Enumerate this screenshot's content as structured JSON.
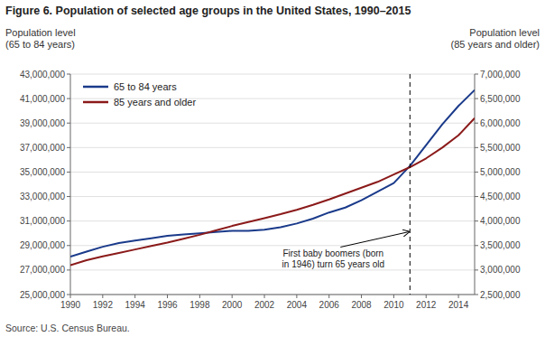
{
  "chart_data": {
    "type": "line",
    "title": "Figure 6. Population of selected age groups in the United States, 1990–2015",
    "ylabel": "Population level\n(65 to 84 years)",
    "y2label": "Population level\n(85 years and older)",
    "source": "Source: U.S. Census Bureau.",
    "x": [
      1990,
      1991,
      1992,
      1993,
      1994,
      1995,
      1996,
      1997,
      1998,
      1999,
      2000,
      2001,
      2002,
      2003,
      2004,
      2005,
      2006,
      2007,
      2008,
      2009,
      2010,
      2011,
      2012,
      2013,
      2014,
      2015
    ],
    "series": [
      {
        "name": "65 to 84 years",
        "color": "#1a3a8a",
        "values": [
          28100000,
          28500000,
          28900000,
          29200000,
          29400000,
          29600000,
          29800000,
          29900000,
          30000000,
          30100000,
          30200000,
          30200000,
          30300000,
          30500000,
          30800000,
          31200000,
          31700000,
          32100000,
          32700000,
          33400000,
          34100000,
          35500000,
          37200000,
          38900000,
          40400000,
          41700000
        ]
      },
      {
        "name": "85 years and older",
        "color": "#8b1a1a",
        "axis": "y2",
        "values": [
          3100000,
          3200000,
          3280000,
          3350000,
          3420000,
          3490000,
          3560000,
          3640000,
          3720000,
          3810000,
          3900000,
          3980000,
          4060000,
          4140000,
          4230000,
          4330000,
          4440000,
          4560000,
          4680000,
          4800000,
          4950000,
          5100000,
          5280000,
          5500000,
          5750000,
          6100000
        ]
      }
    ],
    "xlim": [
      1990,
      2015
    ],
    "xticks": [
      1990,
      1992,
      1994,
      1996,
      1998,
      2000,
      2002,
      2004,
      2006,
      2008,
      2010,
      2012,
      2014
    ],
    "ylim": [
      25000000,
      43000000
    ],
    "yticks": [
      {
        "value": 25000000,
        "label": "25,000,000"
      },
      {
        "value": 27000000,
        "label": "27,000,000"
      },
      {
        "value": 29000000,
        "label": "29,000,000"
      },
      {
        "value": 31000000,
        "label": "31,000,000"
      },
      {
        "value": 33000000,
        "label": "33,000,000"
      },
      {
        "value": 35000000,
        "label": "35,000,000"
      },
      {
        "value": 37000000,
        "label": "37,000,000"
      },
      {
        "value": 39000000,
        "label": "39,000,000"
      },
      {
        "value": 41000000,
        "label": "41,000,000"
      },
      {
        "value": 43000000,
        "label": "43,000,000"
      }
    ],
    "y2lim": [
      2500000,
      7000000
    ],
    "y2ticks": [
      {
        "value": 2500000,
        "label": "2,500,000"
      },
      {
        "value": 3000000,
        "label": "3,000,000"
      },
      {
        "value": 3500000,
        "label": "3,500,000"
      },
      {
        "value": 4000000,
        "label": "4,000,000"
      },
      {
        "value": 4500000,
        "label": "4,500,000"
      },
      {
        "value": 5000000,
        "label": "5,000,000"
      },
      {
        "value": 5500000,
        "label": "5,500,000"
      },
      {
        "value": 6000000,
        "label": "6,000,000"
      },
      {
        "value": 6500000,
        "label": "6,500,000"
      },
      {
        "value": 7000000,
        "label": "7,000,000"
      }
    ],
    "grid": true,
    "legend": "upper left",
    "vertical_lines": [
      {
        "x": 2011,
        "line_style": "dashed"
      }
    ],
    "annotations": [
      {
        "text": "First baby boomers (born\nin 1946) turn 65 years old",
        "x": 2011,
        "y": 30200000
      }
    ]
  }
}
